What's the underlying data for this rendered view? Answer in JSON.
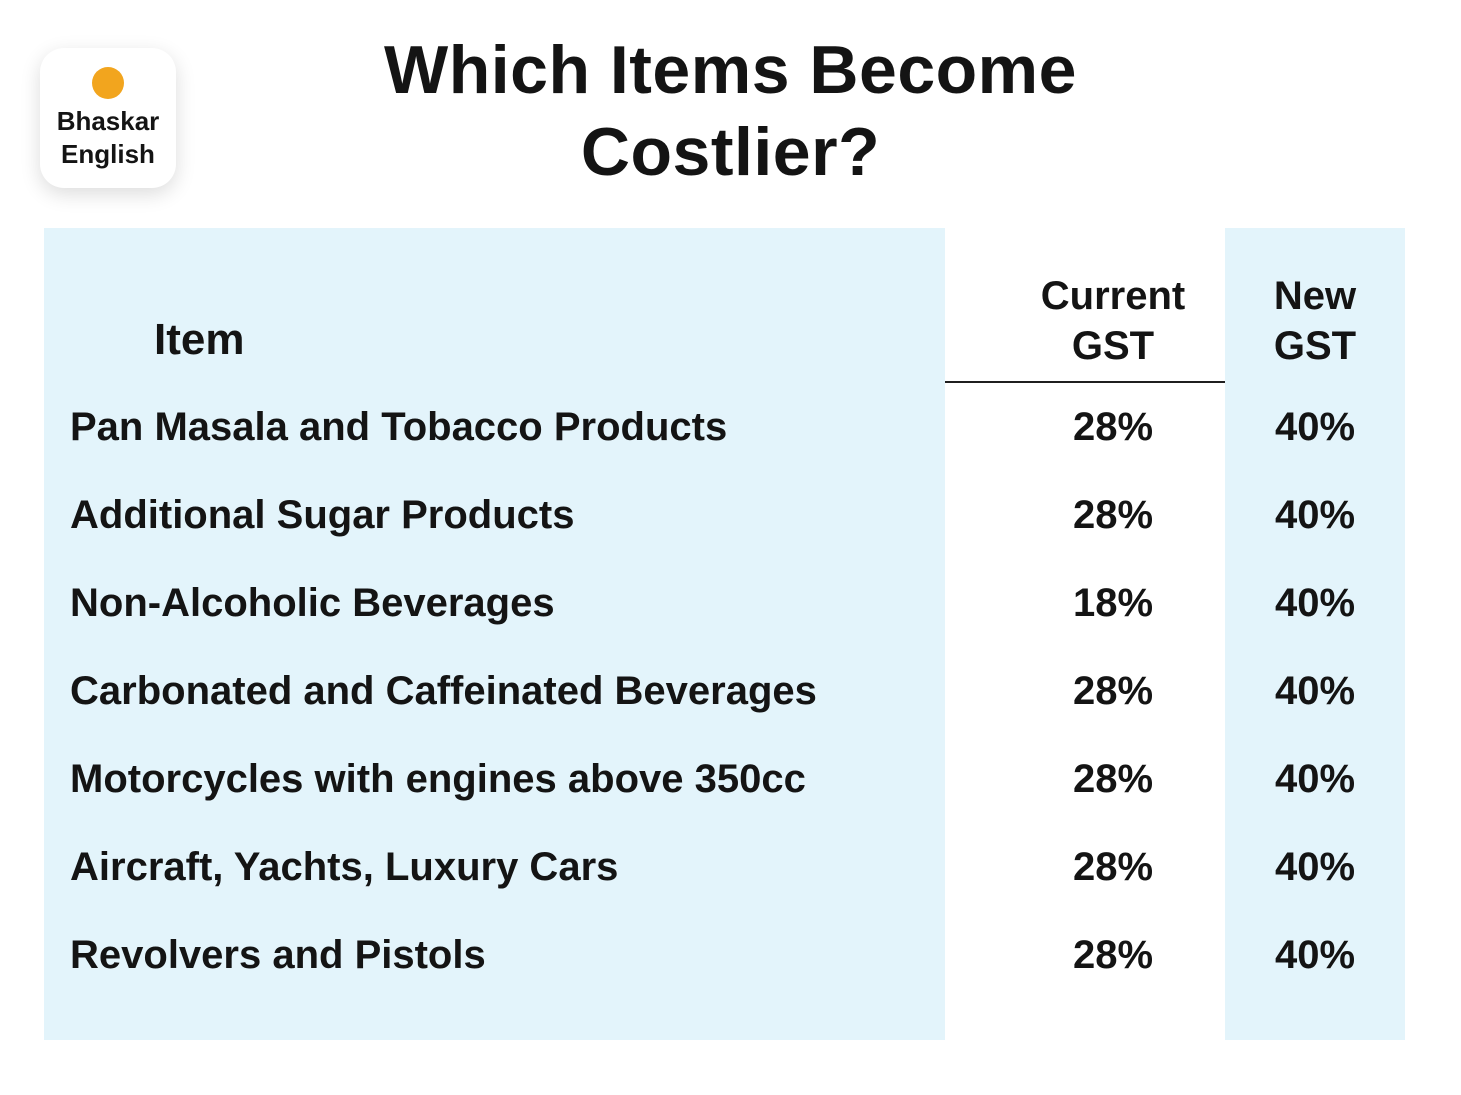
{
  "logo": {
    "line1": "Bhaskar",
    "line2": "English"
  },
  "chart_data": {
    "type": "table",
    "title": "Which Items Become Costlier?",
    "columns": [
      "Item",
      "Current GST",
      "New GST"
    ],
    "rows": [
      [
        "Pan Masala and Tobacco Products",
        "28%",
        "40%"
      ],
      [
        "Additional Sugar Products",
        "28%",
        "40%"
      ],
      [
        "Non-Alcoholic Beverages",
        "18%",
        "40%"
      ],
      [
        "Carbonated and Caffeinated Beverages",
        "28%",
        "40%"
      ],
      [
        "Motorcycles with engines above 350cc",
        "28%",
        "40%"
      ],
      [
        "Aircraft, Yachts, Luxury Cars",
        "28%",
        "40%"
      ],
      [
        "Revolvers and Pistols",
        "28%",
        "40%"
      ]
    ]
  },
  "colors": {
    "table_bg": "#E3F4FB",
    "logo_dot": "#F2A51E",
    "text": "#141414"
  }
}
